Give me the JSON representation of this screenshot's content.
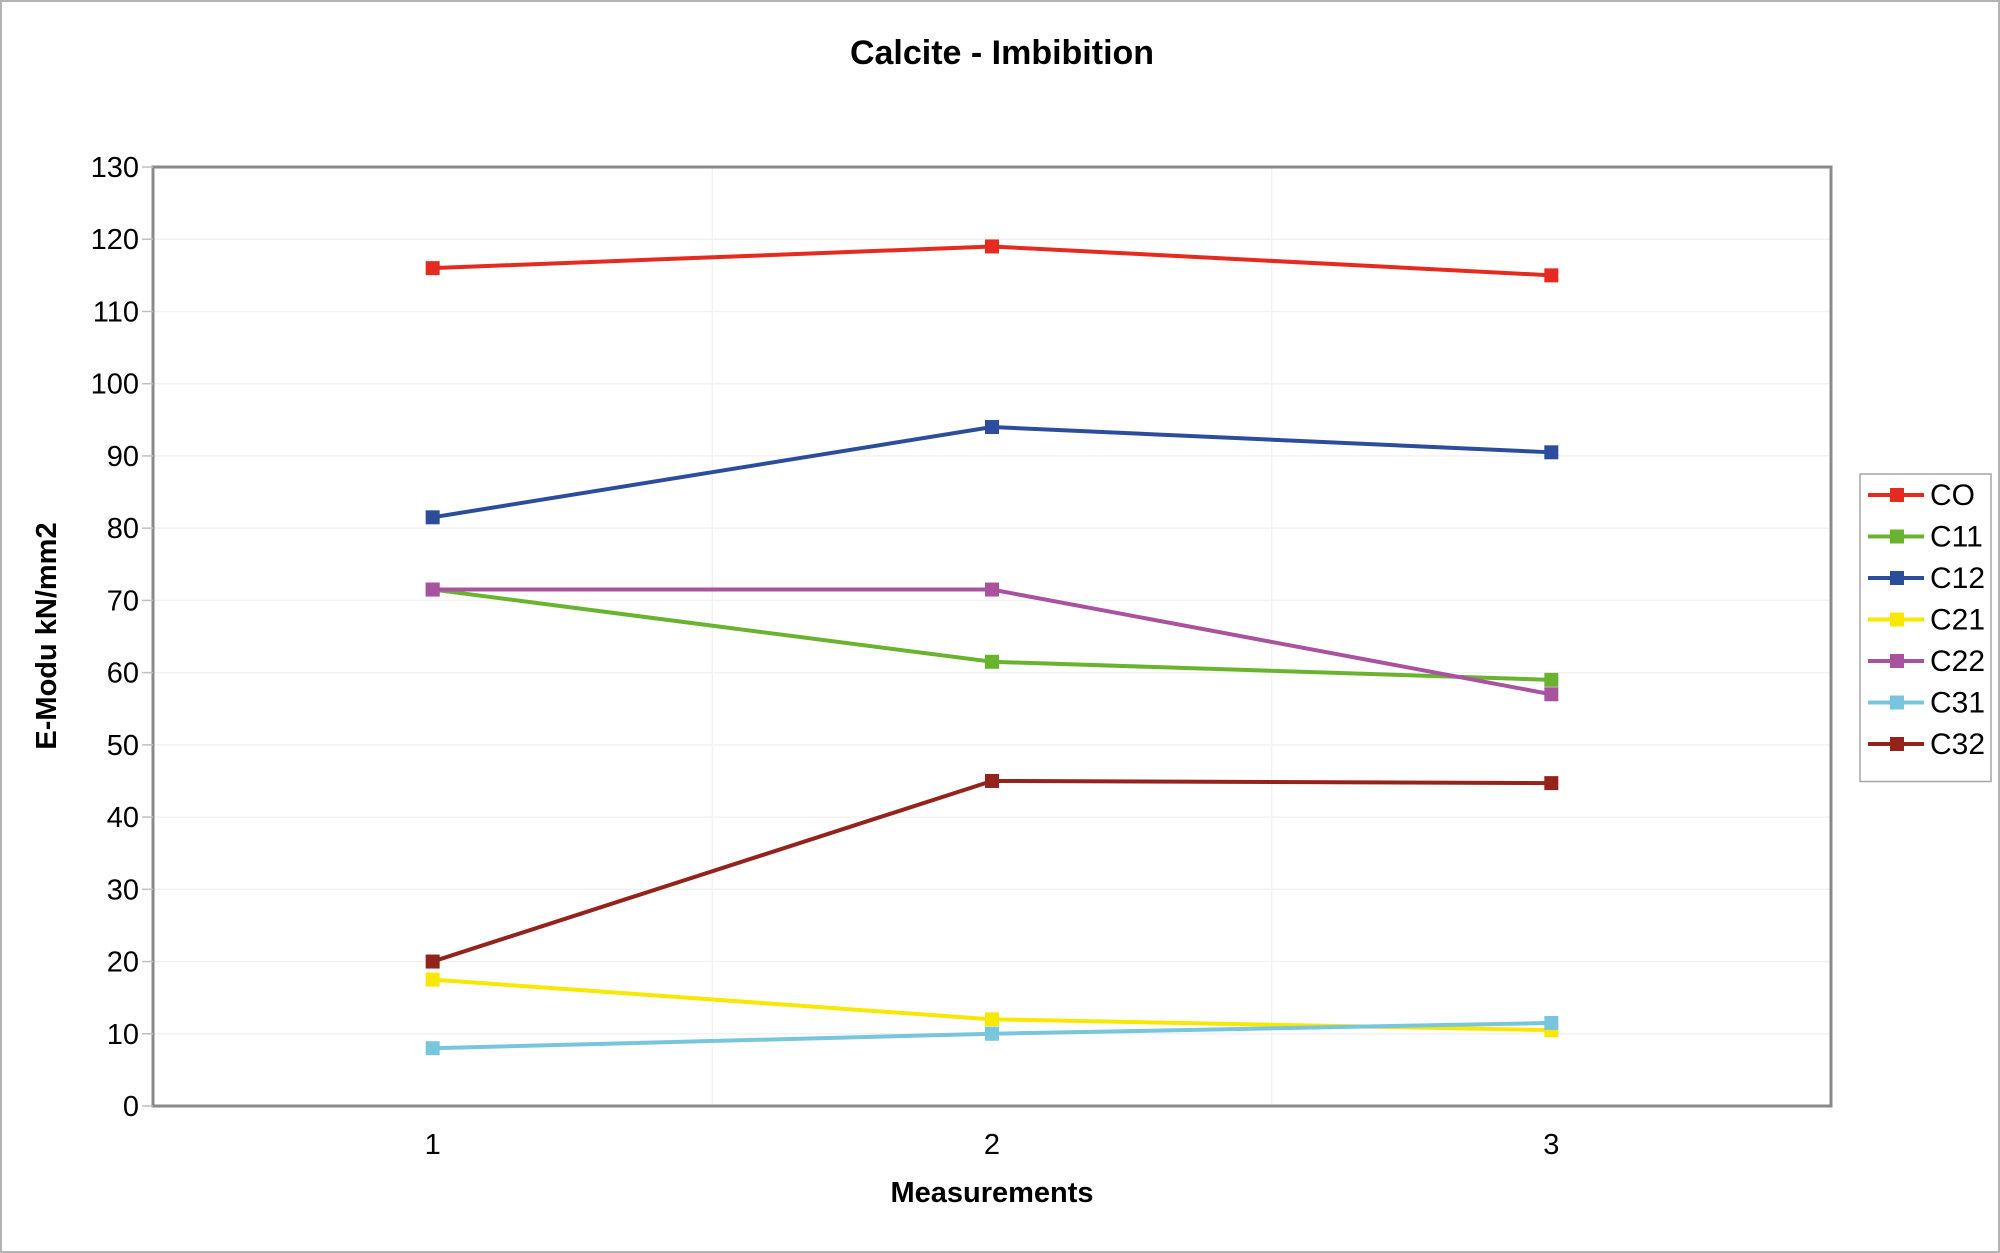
{
  "chart_data": {
    "type": "line",
    "title": "Calcite - Imbibition",
    "xlabel": "Measurements",
    "ylabel": "E-Modu kN/mm2",
    "categories": [
      "1",
      "2",
      "3"
    ],
    "ylim": [
      0,
      130
    ],
    "ytick_step": 10,
    "yticks": [
      0,
      10,
      20,
      30,
      40,
      50,
      60,
      70,
      80,
      90,
      100,
      110,
      120,
      130
    ],
    "grid": {
      "horizontal": "faint line every 10 units",
      "vertical": "faint lines at category boundaries"
    },
    "legend_position": "right",
    "marker": "square",
    "series": [
      {
        "name": "CO",
        "color": "#e52a20",
        "values": [
          116,
          119,
          115
        ]
      },
      {
        "name": "C11",
        "color": "#6ab32f",
        "values": [
          71.5,
          61.5,
          59
        ]
      },
      {
        "name": "C12",
        "color": "#2c4d9b",
        "values": [
          81.5,
          94,
          90.5
        ]
      },
      {
        "name": "C21",
        "color": "#f8e800",
        "values": [
          17.5,
          12,
          10.5
        ]
      },
      {
        "name": "C22",
        "color": "#a9529f",
        "values": [
          71.5,
          71.5,
          57
        ]
      },
      {
        "name": "C31",
        "color": "#77c6dd",
        "values": [
          8,
          10,
          11.5
        ]
      },
      {
        "name": "C32",
        "color": "#94231b",
        "values": [
          20,
          45,
          44.7
        ]
      }
    ]
  },
  "style_colors": {
    "plot_border": "#8a8a8a",
    "gridline": "#f2f2f2",
    "tick": "#c0c0c0",
    "legend_border": "#a6a6a6",
    "text": "#000000"
  }
}
